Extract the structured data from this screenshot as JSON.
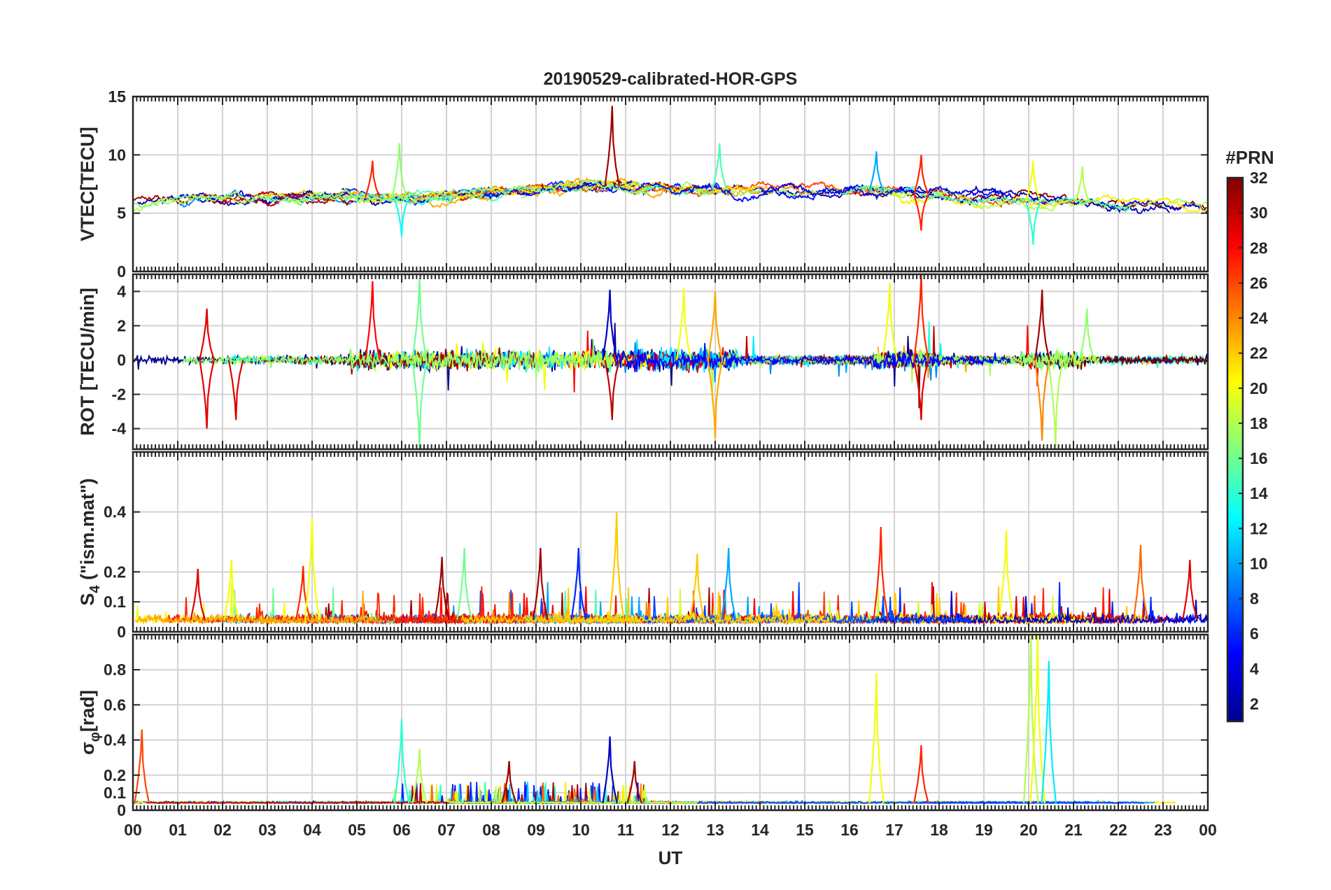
{
  "figure": {
    "title": "20190529-calibrated-HOR-GPS",
    "xlabel": "UT",
    "x_tick_labels": [
      "00",
      "01",
      "02",
      "03",
      "04",
      "05",
      "06",
      "07",
      "08",
      "09",
      "10",
      "11",
      "12",
      "13",
      "14",
      "15",
      "16",
      "17",
      "18",
      "19",
      "20",
      "21",
      "22",
      "23",
      "00"
    ],
    "colorbar": {
      "label": "#PRN",
      "tick_labels": [
        "2",
        "4",
        "6",
        "8",
        "10",
        "12",
        "14",
        "16",
        "18",
        "20",
        "22",
        "24",
        "26",
        "28",
        "30",
        "32"
      ],
      "tick_values": [
        2,
        4,
        6,
        8,
        10,
        12,
        14,
        16,
        18,
        20,
        22,
        24,
        26,
        28,
        30,
        32
      ],
      "range": [
        1,
        32
      ],
      "colors": [
        "#00008f",
        "#0000ff",
        "#0080ff",
        "#00ffff",
        "#80ff80",
        "#ffff00",
        "#ff8000",
        "#ff0000",
        "#800000"
      ]
    }
  },
  "chart_data": [
    {
      "type": "line",
      "panel": "vtec",
      "ylabel": "VTEC[TECU]",
      "xlim": [
        0,
        24
      ],
      "ylim": [
        0,
        15
      ],
      "y_ticks": [
        0,
        5,
        10,
        15
      ],
      "y_tick_labels": [
        "0",
        "5",
        "10",
        "15"
      ],
      "series_description": "per-PRN VTEC traces",
      "baseline": {
        "x": [
          0,
          3,
          6,
          8,
          10,
          12,
          14,
          16,
          18,
          20,
          22,
          24
        ],
        "y": [
          6,
          6.5,
          6.3,
          7,
          7.5,
          7,
          7,
          7,
          6.5,
          6,
          5.8,
          5.3
        ]
      },
      "peaks": [
        {
          "x": 5.35,
          "y": 9.5,
          "prn": 27
        },
        {
          "x": 5.95,
          "y": 11,
          "prn": 17
        },
        {
          "x": 6.0,
          "y": 3,
          "prn": 13
        },
        {
          "x": 10.7,
          "y": 14.2,
          "prn": 31
        },
        {
          "x": 13.1,
          "y": 11,
          "prn": 15
        },
        {
          "x": 16.6,
          "y": 10.3,
          "prn": 10
        },
        {
          "x": 17.6,
          "y": 10,
          "prn": 27
        },
        {
          "x": 17.6,
          "y": 3.5,
          "prn": 27
        },
        {
          "x": 20.1,
          "y": 9.5,
          "prn": 20
        },
        {
          "x": 20.1,
          "y": 2.3,
          "prn": 14
        },
        {
          "x": 21.2,
          "y": 9,
          "prn": 18
        }
      ]
    },
    {
      "type": "line",
      "panel": "rot",
      "ylabel": "ROT [TECU/min]",
      "xlim": [
        0,
        24
      ],
      "ylim": [
        -5.2,
        5
      ],
      "y_ticks": [
        -4,
        -2,
        0,
        2,
        4
      ],
      "y_tick_labels": [
        "-4",
        "-2",
        "0",
        "2",
        "4"
      ],
      "series_description": "per-PRN rate of TEC",
      "spikes": [
        {
          "x": 1.65,
          "y": 3,
          "prn": 29
        },
        {
          "x": 1.65,
          "y": -4,
          "prn": 29
        },
        {
          "x": 2.3,
          "y": -3.5,
          "prn": 29
        },
        {
          "x": 5.35,
          "y": 4.6,
          "prn": 28
        },
        {
          "x": 6.4,
          "y": 4.8,
          "prn": 16
        },
        {
          "x": 6.4,
          "y": -5.2,
          "prn": 16
        },
        {
          "x": 10.65,
          "y": 4.1,
          "prn": 3
        },
        {
          "x": 10.7,
          "y": -3.5,
          "prn": 30
        },
        {
          "x": 12.3,
          "y": 4.2,
          "prn": 20
        },
        {
          "x": 13.0,
          "y": 4.0,
          "prn": 23
        },
        {
          "x": 13.0,
          "y": -4.6,
          "prn": 23
        },
        {
          "x": 16.9,
          "y": 4.5,
          "prn": 20
        },
        {
          "x": 17.6,
          "y": 5.0,
          "prn": 27
        },
        {
          "x": 17.6,
          "y": -3.5,
          "prn": 29
        },
        {
          "x": 20.3,
          "y": 4.1,
          "prn": 31
        },
        {
          "x": 20.3,
          "y": -4.7,
          "prn": 24
        },
        {
          "x": 20.6,
          "y": -5.0,
          "prn": 18
        },
        {
          "x": 21.3,
          "y": 3,
          "prn": 17
        }
      ]
    },
    {
      "type": "line",
      "panel": "s4",
      "ylabel": "S4 (\"ism.mat\")",
      "ylabel_main": "S",
      "ylabel_sub": "4",
      "ylabel_rest": " (\"ism.mat\")",
      "xlim": [
        0,
        24
      ],
      "ylim": [
        0,
        0.6
      ],
      "y_ticks": [
        0,
        0.1,
        0.2,
        0.4
      ],
      "y_tick_labels": [
        "0",
        "0.1",
        "0.2",
        "0.4"
      ],
      "series_description": "per-PRN amplitude scintillation index",
      "peaks": [
        {
          "x": 1.45,
          "y": 0.21,
          "prn": 29
        },
        {
          "x": 2.2,
          "y": 0.24,
          "prn": 20
        },
        {
          "x": 3.8,
          "y": 0.22,
          "prn": 27
        },
        {
          "x": 4.0,
          "y": 0.38,
          "prn": 20
        },
        {
          "x": 6.9,
          "y": 0.25,
          "prn": 31
        },
        {
          "x": 7.4,
          "y": 0.28,
          "prn": 16
        },
        {
          "x": 9.1,
          "y": 0.28,
          "prn": 31
        },
        {
          "x": 9.95,
          "y": 0.28,
          "prn": 6
        },
        {
          "x": 10.8,
          "y": 0.4,
          "prn": 22
        },
        {
          "x": 12.6,
          "y": 0.26,
          "prn": 22
        },
        {
          "x": 13.3,
          "y": 0.28,
          "prn": 10
        },
        {
          "x": 16.7,
          "y": 0.35,
          "prn": 27
        },
        {
          "x": 19.5,
          "y": 0.34,
          "prn": 20
        },
        {
          "x": 22.5,
          "y": 0.29,
          "prn": 25
        },
        {
          "x": 23.6,
          "y": 0.24,
          "prn": 29
        }
      ]
    },
    {
      "type": "line",
      "panel": "sigma_phi",
      "ylabel": "σφ[rad]",
      "ylabel_main": "σ",
      "ylabel_sub": "φ",
      "ylabel_rest": "[rad]",
      "xlim": [
        0,
        24
      ],
      "ylim": [
        0,
        1.0
      ],
      "y_ticks": [
        0,
        0.1,
        0.2,
        0.4,
        0.6,
        0.8
      ],
      "y_tick_labels": [
        "0",
        "0.1",
        "0.2",
        "0.4",
        "0.6",
        "0.8"
      ],
      "series_description": "per-PRN phase scintillation index",
      "peaks": [
        {
          "x": 0.2,
          "y": 0.46,
          "prn": 26
        },
        {
          "x": 6.0,
          "y": 0.52,
          "prn": 14
        },
        {
          "x": 6.4,
          "y": 0.35,
          "prn": 18
        },
        {
          "x": 8.4,
          "y": 0.28,
          "prn": 31
        },
        {
          "x": 10.65,
          "y": 0.42,
          "prn": 3
        },
        {
          "x": 11.2,
          "y": 0.28,
          "prn": 31
        },
        {
          "x": 16.6,
          "y": 0.78,
          "prn": 20
        },
        {
          "x": 17.6,
          "y": 0.37,
          "prn": 27
        },
        {
          "x": 20.05,
          "y": 1.0,
          "prn": 18
        },
        {
          "x": 20.2,
          "y": 1.0,
          "prn": 20
        },
        {
          "x": 20.45,
          "y": 0.85,
          "prn": 12
        }
      ]
    }
  ]
}
